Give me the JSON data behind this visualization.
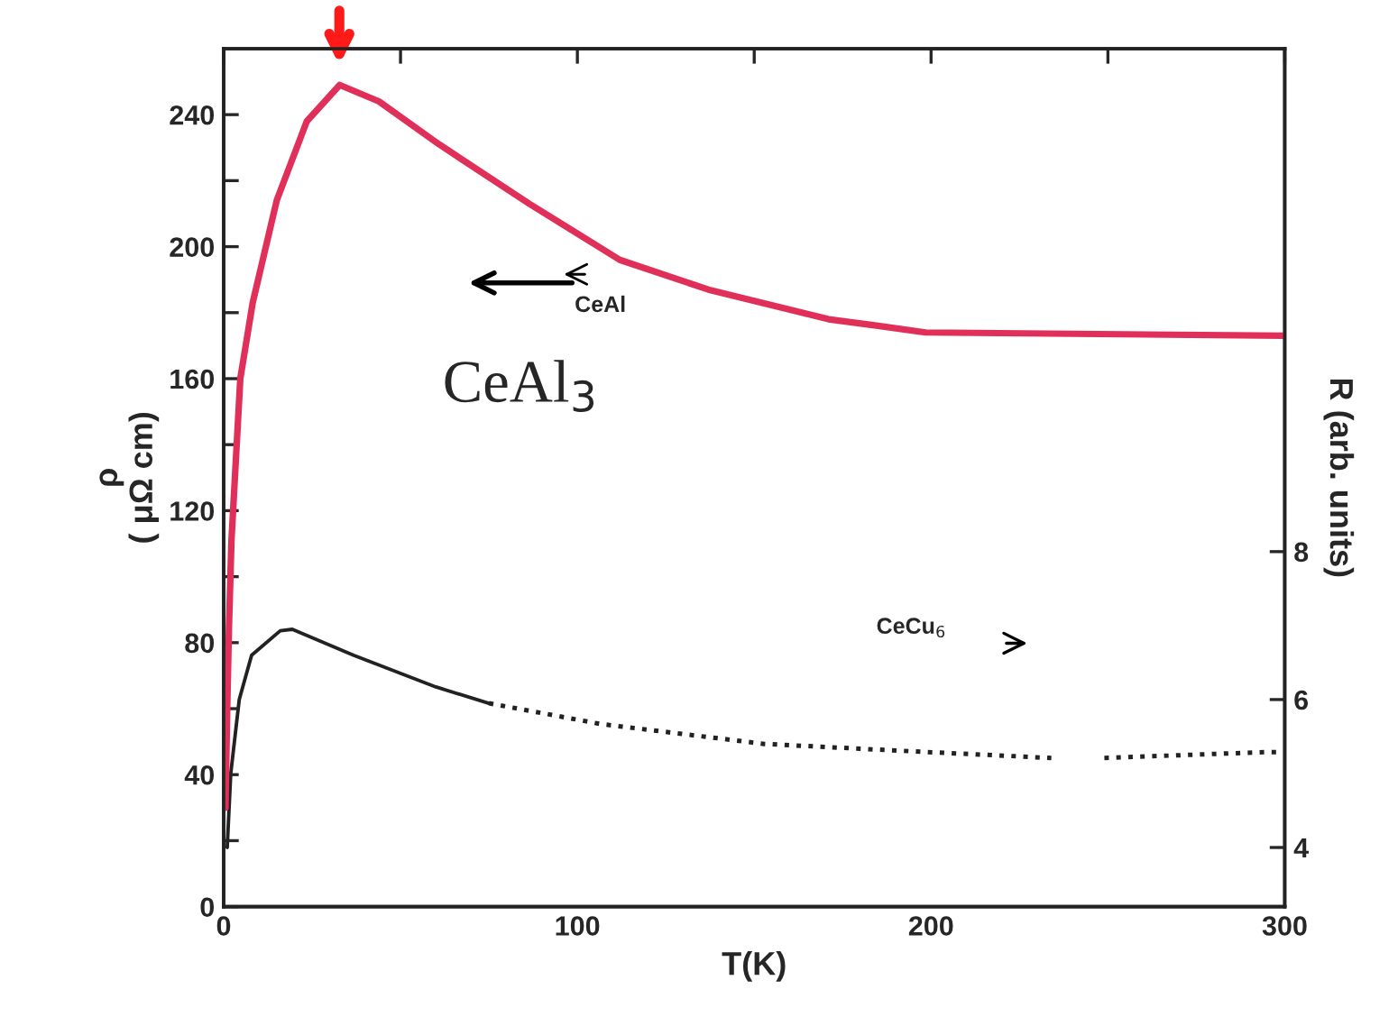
{
  "chart_data": {
    "type": "line",
    "xlabel": "T(K)",
    "ylabel": "ρ\n( μΩ cm)",
    "y2label": "R (arb. units)",
    "xlim": [
      0,
      300
    ],
    "xticks": [
      0,
      {
        "value": 50,
        "label": null
      },
      100,
      {
        "value": 150,
        "label": null
      },
      200,
      {
        "value": 250,
        "label": null
      },
      300
    ],
    "ylim": [
      0,
      260
    ],
    "yticks": [
      0,
      {
        "value": 20,
        "label": null
      },
      40,
      {
        "value": 60,
        "label": null
      },
      80,
      {
        "value": 100,
        "label": null
      },
      120,
      {
        "value": 140,
        "label": null
      },
      160,
      {
        "value": 180,
        "label": null
      },
      200,
      {
        "value": 220,
        "label": null
      },
      240
    ],
    "y2lim": [
      3.2,
      14.8
    ],
    "y2ticks": [
      4,
      6,
      8
    ],
    "grid": false,
    "legend": false,
    "marker": "none",
    "series": [
      {
        "color": "#e0305a",
        "line_style": "solid",
        "x": [
          0.5,
          1,
          1.5,
          2.2,
          4.7,
          8.2,
          15,
          23.5,
          32.8,
          43.9,
          60.9,
          86.4,
          112,
          137,
          171,
          185,
          198.5,
          300
        ],
        "values": [
          30,
          60,
          85,
          111,
          160,
          183,
          214,
          238,
          249,
          244,
          231,
          213,
          196,
          187,
          178,
          176,
          174,
          173
        ]
      },
      {
        "color": "#222222",
        "axis": "y2",
        "line_style": "solid",
        "x": [
          1,
          2,
          4.4,
          7.9,
          16,
          19.4,
          36.7,
          60,
          75
        ],
        "values": [
          4.0,
          5.0,
          6.0,
          6.6,
          6.93,
          6.95,
          6.6,
          6.17,
          5.95
        ]
      },
      {
        "color": "#222222",
        "axis": "y2",
        "line_style": "dotted",
        "x": [
          75,
          106.5,
          152.9,
          199,
          234,
          238,
          249,
          294.5,
          300
        ],
        "values": [
          5.95,
          5.67,
          5.4,
          5.29,
          5.21,
          null,
          5.21,
          5.29,
          5.29
        ]
      }
    ],
    "annotations": [
      "CeAl",
      "CeAl$_{3}$",
      "CeCu$_{6}$"
    ]
  }
}
